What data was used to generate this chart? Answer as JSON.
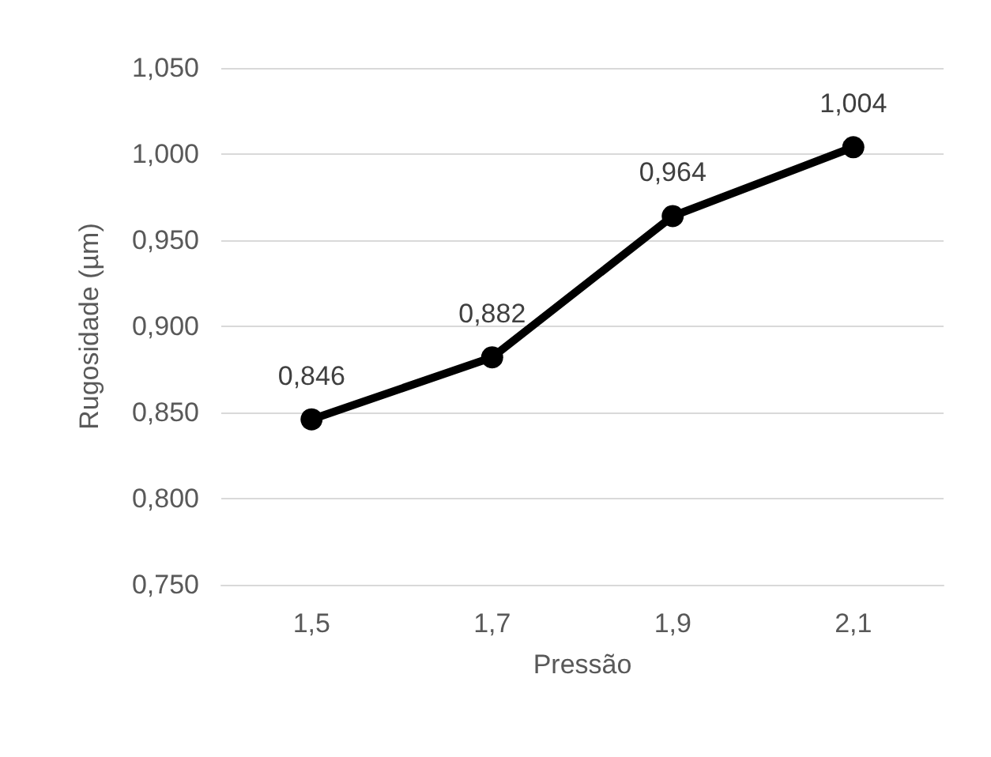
{
  "chart_data": {
    "type": "line",
    "xlabel": "Pressão",
    "ylabel": "Rugosidade (µm)",
    "categories": [
      "1,5",
      "1,7",
      "1,9",
      "2,1"
    ],
    "series": [
      {
        "color": "#000000",
        "values": [
          0.846,
          0.882,
          0.964,
          1.004
        ],
        "value_labels": [
          "0,846",
          "0,882",
          "0,964",
          "1,004"
        ]
      }
    ],
    "ylim": [
      0.75,
      1.05
    ],
    "yticks": [
      {
        "value": 0.75,
        "label": "0,750"
      },
      {
        "value": 0.8,
        "label": "0,800"
      },
      {
        "value": 0.85,
        "label": "0,850"
      },
      {
        "value": 0.9,
        "label": "0,900"
      },
      {
        "value": 0.95,
        "label": "0,950"
      },
      {
        "value": 1.0,
        "label": "1,000"
      },
      {
        "value": 1.05,
        "label": "1,050"
      }
    ],
    "grid": "y",
    "marker": "circle",
    "line_style": "solid"
  }
}
